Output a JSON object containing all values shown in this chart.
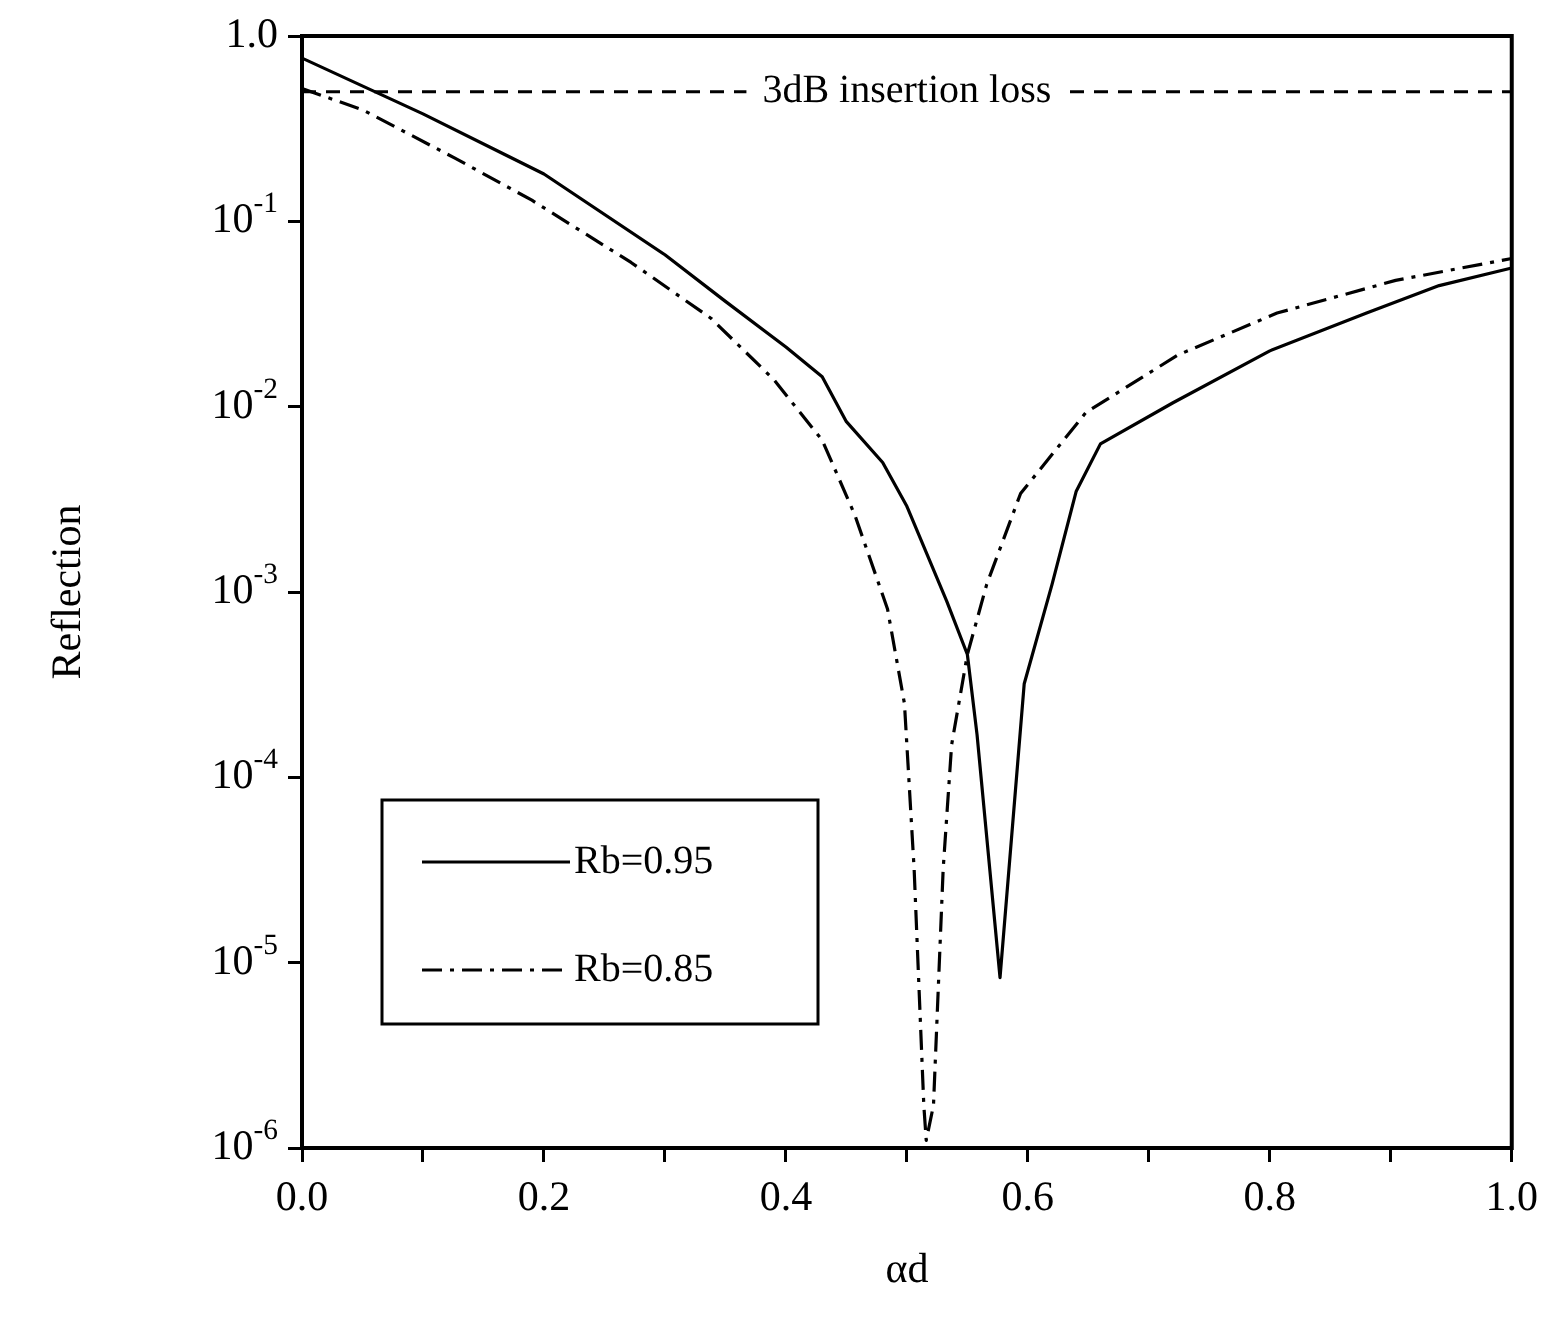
{
  "chart_data": {
    "type": "line",
    "xlabel": "αd",
    "ylabel": "Reflection",
    "log": "y",
    "xlim": [
      0,
      1
    ],
    "ylim": [
      1e-06,
      1
    ],
    "xticks": [
      {
        "value": 0,
        "label": "0.0"
      },
      {
        "value": 0.1,
        "label": null
      },
      {
        "value": 0.2,
        "label": "0.2"
      },
      {
        "value": 0.3,
        "label": null
      },
      {
        "value": 0.4,
        "label": "0.4"
      },
      {
        "value": 0.5,
        "label": null
      },
      {
        "value": 0.6,
        "label": "0.6"
      },
      {
        "value": 0.7,
        "label": null
      },
      {
        "value": 0.8,
        "label": "0.8"
      },
      {
        "value": 0.9,
        "label": null
      },
      {
        "value": 1,
        "label": "1.0"
      }
    ],
    "yticks": [
      {
        "value": 1,
        "label": "1.0"
      },
      {
        "value": 0.1,
        "label": "10$^{-1}$"
      },
      {
        "value": 0.01,
        "label": "10$^{-2}$"
      },
      {
        "value": 0.001,
        "label": "10$^{-3}$"
      },
      {
        "value": 0.0001,
        "label": "10$^{-4}$"
      },
      {
        "value": 1e-05,
        "label": "10$^{-5}$"
      },
      {
        "value": 1e-06,
        "label": "10$^{-6}$"
      }
    ],
    "legend": "bottom left",
    "grid": false,
    "marker": "none",
    "ref_lines": [
      {
        "axis": "y",
        "value": 0.5,
        "label": "3dB insertion loss",
        "color": "#000000",
        "line_style": "dashed"
      }
    ],
    "series": [
      {
        "name": "Rb=0.95",
        "color": "#000000",
        "line_style": "solid",
        "x": [
          0,
          0.1,
          0.2,
          0.3,
          0.35,
          0.4,
          0.43,
          0.45,
          0.48,
          0.5,
          0.533,
          0.55,
          0.558,
          0.577,
          0.597,
          0.62,
          0.64,
          0.66,
          0.72,
          0.8,
          0.88,
          0.94,
          1.0
        ],
        "values": [
          0.76,
          0.38,
          0.18,
          0.066,
          0.037,
          0.021,
          0.0145,
          0.0083,
          0.005,
          0.0029,
          0.00089,
          0.00046,
          0.00017,
          8.3e-06,
          0.00032,
          0.0011,
          0.0035,
          0.0063,
          0.0105,
          0.02,
          0.032,
          0.045,
          0.056
        ]
      },
      {
        "name": "Rb=0.85",
        "color": "#000000",
        "line_style": "dashdot",
        "x": [
          0,
          0.05,
          0.126,
          0.19,
          0.272,
          0.338,
          0.39,
          0.43,
          0.457,
          0.484,
          0.498,
          0.506,
          0.514,
          0.516,
          0.522,
          0.53,
          0.537,
          0.55,
          0.566,
          0.594,
          0.648,
          0.724,
          0.806,
          0.904,
          1.0
        ],
        "values": [
          0.52,
          0.4,
          0.22,
          0.13,
          0.06,
          0.03,
          0.014,
          0.0066,
          0.0026,
          0.00081,
          0.00025,
          3.2e-05,
          1.7e-06,
          1.1e-06,
          1.7e-06,
          3.2e-05,
          0.00015,
          0.00046,
          0.0011,
          0.0034,
          0.0093,
          0.019,
          0.032,
          0.048,
          0.063
        ]
      }
    ]
  }
}
